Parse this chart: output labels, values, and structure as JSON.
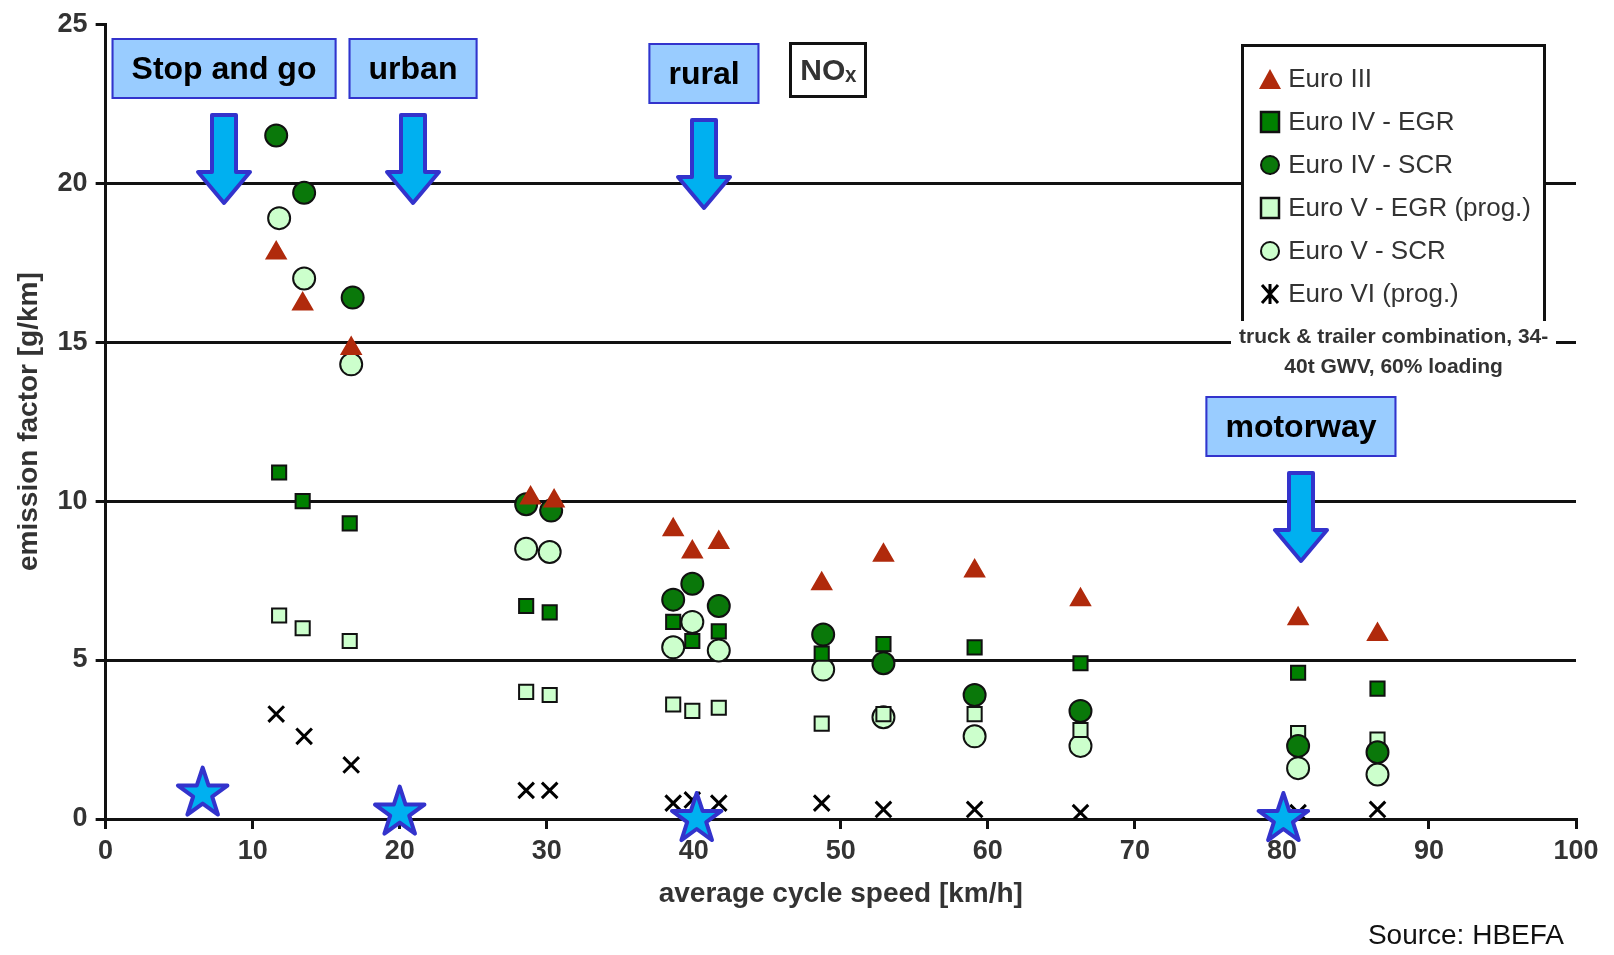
{
  "chart_data": {
    "type": "scatter",
    "xlabel": "average cycle speed [km/h]",
    "ylabel": "emission factor [g/km]",
    "xlim": [
      0,
      100
    ],
    "xticks": [
      0,
      10,
      20,
      30,
      40,
      50,
      60,
      70,
      80,
      90,
      100
    ],
    "ylim": [
      0,
      25
    ],
    "yticks": [
      0,
      5,
      10,
      15,
      20,
      25
    ],
    "grid": "y",
    "legend": "top right",
    "series": [
      {
        "name": "Euro III",
        "color": "#b02a0c",
        "marker": "triangle",
        "x": [
          11.6,
          13.4,
          16.7,
          28.9,
          30.5,
          38.6,
          39.9,
          41.7,
          48.7,
          52.9,
          59.1,
          66.3,
          81.1,
          86.5
        ],
        "values": [
          17.8,
          16.2,
          14.8,
          10.1,
          10.0,
          9.1,
          8.4,
          8.7,
          7.4,
          8.3,
          7.8,
          6.9,
          6.3,
          5.8
        ]
      },
      {
        "name": "Euro IV - EGR",
        "color": "#008000",
        "marker": "square",
        "x": [
          11.8,
          13.4,
          16.6,
          28.6,
          30.2,
          38.6,
          39.9,
          41.7,
          48.7,
          52.9,
          59.1,
          66.3,
          81.1,
          86.5
        ],
        "values": [
          10.9,
          10.0,
          9.3,
          6.7,
          6.5,
          6.2,
          5.6,
          5.9,
          5.2,
          5.5,
          5.4,
          4.9,
          4.6,
          4.1
        ]
      },
      {
        "name": "Euro IV - SCR",
        "color": "#0a780a",
        "marker": "circle",
        "x": [
          11.6,
          13.5,
          16.8,
          28.6,
          30.3,
          38.6,
          39.9,
          41.7,
          48.8,
          52.9,
          59.1,
          66.3,
          81.1,
          86.5
        ],
        "values": [
          21.5,
          19.7,
          16.4,
          9.9,
          9.7,
          6.9,
          7.4,
          6.7,
          5.8,
          4.9,
          3.9,
          3.4,
          2.3,
          2.1
        ]
      },
      {
        "name": "Euro V - EGR (prog.)",
        "color": "#ccffcc",
        "marker": "square",
        "x": [
          11.8,
          13.4,
          16.6,
          28.6,
          30.2,
          38.6,
          39.9,
          41.7,
          48.7,
          52.9,
          59.1,
          66.3,
          81.1,
          86.5
        ],
        "values": [
          6.4,
          6.0,
          5.6,
          4.0,
          3.9,
          3.6,
          3.4,
          3.5,
          3.0,
          3.3,
          3.3,
          2.8,
          2.7,
          2.5
        ]
      },
      {
        "name": "Euro V - SCR",
        "color": "#ccffcc",
        "marker": "circle",
        "x": [
          11.8,
          13.5,
          16.7,
          28.6,
          30.2,
          38.6,
          39.9,
          41.7,
          48.8,
          52.9,
          59.1,
          66.3,
          81.1,
          86.5
        ],
        "values": [
          18.9,
          17.0,
          14.3,
          8.5,
          8.4,
          5.4,
          6.2,
          5.3,
          4.7,
          3.2,
          2.6,
          2.3,
          1.6,
          1.4
        ]
      },
      {
        "name": "Euro VI  (prog.)",
        "color": "#000000",
        "marker": "cross",
        "x": [
          11.6,
          13.5,
          16.7,
          28.6,
          30.2,
          38.6,
          39.9,
          41.7,
          48.7,
          52.9,
          59.1,
          66.3,
          81.1,
          86.5
        ],
        "values": [
          3.3,
          2.6,
          1.7,
          0.9,
          0.9,
          0.5,
          0.6,
          0.5,
          0.5,
          0.3,
          0.3,
          0.2,
          0.2,
          0.3
        ]
      },
      {
        "color": "#00b0f0",
        "marker": "star",
        "x": [
          6.6,
          20,
          40.2,
          80.1
        ],
        "values": [
          0.8,
          0.2,
          0,
          0
        ]
      }
    ],
    "annotations": [
      "Stop and go",
      "urban",
      "rural",
      "motorway",
      "NOₓ",
      "truck & trailer combination, 34-40t GWV, 60% loading",
      "Source: HBEFA"
    ]
  }
}
